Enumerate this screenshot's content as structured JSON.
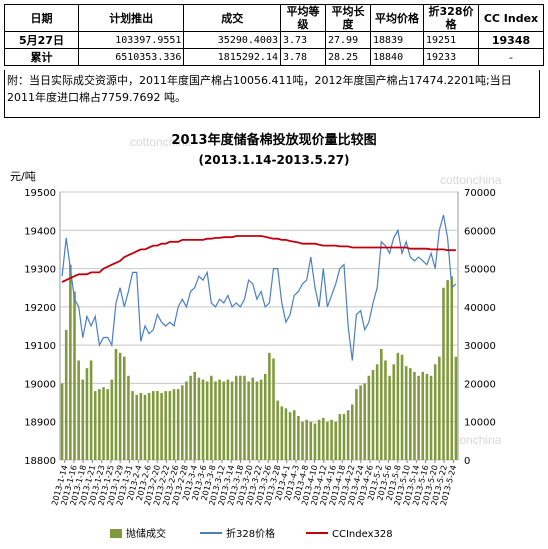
{
  "table": {
    "headers": [
      "日期",
      "计划推出",
      "成交",
      "平均等级",
      "平均长度",
      "平均价格",
      "折328价格",
      "CC Index"
    ],
    "rows": [
      [
        "5月27日",
        "103397.9551",
        "35290.4003",
        "3.73",
        "27.99",
        "18839",
        "19251",
        "19348"
      ],
      [
        "累计",
        "6510353.336",
        "1815292.14",
        "3.78",
        "28.25",
        "18840",
        "19233",
        "-"
      ]
    ]
  },
  "note": "附：当日实际成交资源中，2011年度国产棉占10056.411吨，2012年度国产棉占17474.2201吨;当日2011年度进口棉占7759.7692 吨。",
  "watermark": "cottonchina",
  "chart_data": {
    "type": "bar",
    "title": "2013年度储备棉投放现价量比较图",
    "subtitle": "(2013.1.14-2013.5.27)",
    "ylabel": "元/吨",
    "ylim": [
      18800,
      19500
    ],
    "y2lim": [
      0,
      70000
    ],
    "yticks": [
      18800,
      18900,
      19000,
      19100,
      19200,
      19300,
      19400,
      19500
    ],
    "y2ticks": [
      0,
      10000,
      20000,
      30000,
      40000,
      50000,
      60000,
      70000
    ],
    "grid": true,
    "legend_position": "bottom",
    "xtick_labels": [
      "2013-1-14",
      "2013-1-16",
      "2013-1-18",
      "2013-1-21",
      "2013-1-23",
      "2013-1-25",
      "2013-1-29",
      "2013-1-31",
      "2013-2-4",
      "2013-2-6",
      "2013-2-20",
      "2013-2-22",
      "2013-2-26",
      "2013-2-28",
      "2013-3-4",
      "2013-3-6",
      "2013-3-8",
      "2013-3-12",
      "2013-3-14",
      "2013-3-18",
      "2013-3-20",
      "2013-3-22",
      "2013-3-26",
      "2013-3-28",
      "2013-4-1",
      "2013-4-3",
      "2013-4-8",
      "2013-4-10",
      "2013-4-12",
      "2013-4-16",
      "2013-4-18",
      "2013-4-22",
      "2013-4-24",
      "2013-4-26",
      "2013-5-2",
      "2013-5-6",
      "2013-5-8",
      "2013-5-10",
      "2013-5-14",
      "2013-5-16",
      "2013-5-20",
      "2013-5-22",
      "2013-5-24"
    ],
    "series": [
      {
        "name": "抛储成交",
        "type": "bar",
        "axis": "right",
        "color": "#7f9a3c",
        "values": [
          20000,
          34000,
          51000,
          44000,
          26000,
          21000,
          24000,
          26000,
          18000,
          18500,
          19000,
          18500,
          21000,
          29000,
          28000,
          27000,
          22000,
          18000,
          17000,
          17500,
          17000,
          17500,
          18000,
          18000,
          17500,
          18000,
          18000,
          18500,
          18500,
          19500,
          20500,
          22000,
          23000,
          21500,
          21000,
          20500,
          22000,
          20500,
          21000,
          20500,
          21000,
          20500,
          22000,
          22000,
          22000,
          20500,
          21500,
          20500,
          21000,
          22500,
          28000,
          26500,
          15500,
          14000,
          13500,
          12500,
          13000,
          11500,
          10000,
          10500,
          10000,
          9500,
          10500,
          11000,
          10000,
          10500,
          10000,
          12000,
          12000,
          13000,
          14500,
          18500,
          19500,
          20000,
          22000,
          23500,
          25000,
          29000,
          26000,
          22000,
          25000,
          28000,
          27500,
          24500,
          24000,
          23000,
          22000,
          23000,
          22500,
          22000,
          25000,
          27000,
          45000,
          47000,
          48000,
          27000
        ]
      },
      {
        "name": "折328价格",
        "type": "line",
        "axis": "left",
        "color": "#4a7fc1",
        "values": [
          19280,
          19380,
          19300,
          19220,
          19200,
          19120,
          19175,
          19150,
          19175,
          19100,
          19120,
          19120,
          19100,
          19210,
          19250,
          19200,
          19240,
          19290,
          19290,
          19110,
          19150,
          19130,
          19140,
          19180,
          19160,
          19150,
          19160,
          19150,
          19200,
          19220,
          19200,
          19240,
          19250,
          19280,
          19270,
          19290,
          19210,
          19200,
          19220,
          19210,
          19230,
          19200,
          19210,
          19200,
          19220,
          19270,
          19260,
          19220,
          19240,
          19200,
          19210,
          19300,
          19300,
          19210,
          19160,
          19180,
          19230,
          19240,
          19260,
          19270,
          19330,
          19250,
          19200,
          19300,
          19200,
          19230,
          19260,
          19300,
          19310,
          19150,
          19060,
          19180,
          19190,
          19140,
          19160,
          19210,
          19250,
          19370,
          19360,
          19340,
          19380,
          19400,
          19340,
          19370,
          19330,
          19320,
          19330,
          19320,
          19310,
          19340,
          19300,
          19400,
          19440,
          19380,
          19250,
          19260
        ]
      },
      {
        "name": "CCIndex328",
        "type": "line",
        "axis": "left",
        "color": "#c0000e",
        "values": [
          19265,
          19270,
          19275,
          19280,
          19285,
          19285,
          19285,
          19290,
          19290,
          19290,
          19300,
          19305,
          19310,
          19315,
          19320,
          19330,
          19335,
          19340,
          19345,
          19350,
          19350,
          19355,
          19360,
          19360,
          19365,
          19365,
          19370,
          19370,
          19370,
          19375,
          19375,
          19375,
          19375,
          19375,
          19375,
          19378,
          19378,
          19380,
          19380,
          19382,
          19382,
          19382,
          19385,
          19385,
          19385,
          19385,
          19385,
          19385,
          19385,
          19383,
          19380,
          19378,
          19378,
          19375,
          19375,
          19372,
          19370,
          19368,
          19365,
          19365,
          19365,
          19365,
          19362,
          19360,
          19360,
          19360,
          19360,
          19358,
          19358,
          19358,
          19355,
          19355,
          19355,
          19355,
          19355,
          19355,
          19355,
          19355,
          19355,
          19355,
          19355,
          19355,
          19355,
          19355,
          19352,
          19352,
          19352,
          19352,
          19352,
          19350,
          19350,
          19350,
          19350,
          19348,
          19348,
          19348
        ]
      }
    ]
  }
}
